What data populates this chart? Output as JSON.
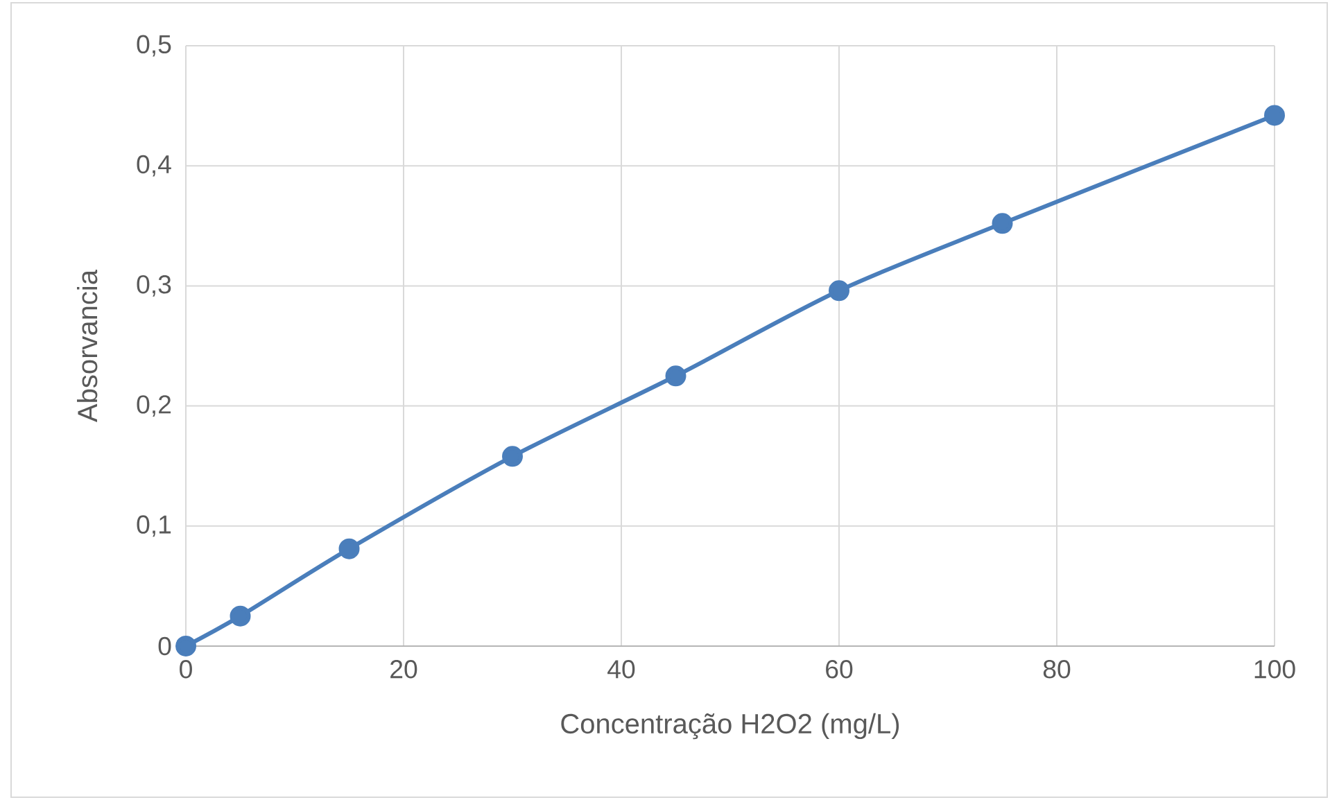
{
  "chart_data": {
    "type": "line",
    "xlabel": "Concentração H2O2 (mg/L)",
    "ylabel": "Absorvancia",
    "x": [
      0,
      5,
      15,
      30,
      45,
      60,
      75,
      100
    ],
    "values": [
      0,
      0.025,
      0.081,
      0.158,
      0.225,
      0.296,
      0.352,
      0.442
    ],
    "color": "#4a7ebb",
    "marker": "circle",
    "grid": true,
    "xlim": [
      0,
      100
    ],
    "xticks": [
      0,
      20,
      40,
      60,
      80,
      100
    ],
    "ylim": [
      0,
      0.5
    ],
    "yticks": [
      0,
      {
        "value": 0.1,
        "label": "0,1"
      },
      {
        "value": 0.2,
        "label": "0,2"
      },
      {
        "value": 0.3,
        "label": "0,3"
      },
      {
        "value": 0.4,
        "label": "0,4"
      },
      {
        "value": 0.5,
        "label": "0,5"
      }
    ]
  }
}
